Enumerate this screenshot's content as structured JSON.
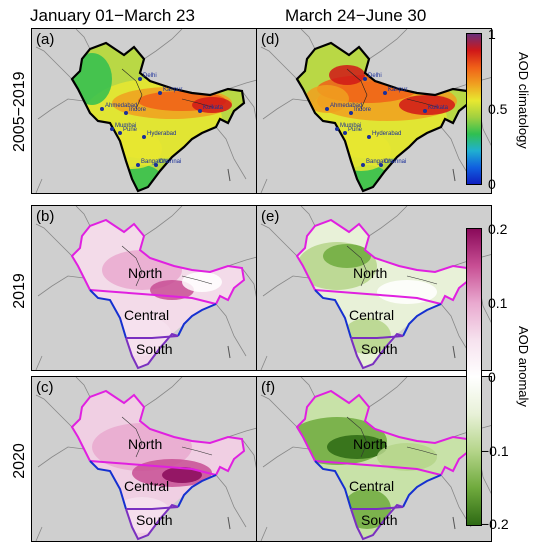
{
  "columns": [
    "January 01−March 23",
    "March 24−June 30"
  ],
  "rows": [
    "2005−2019",
    "2019",
    "2020"
  ],
  "panels": [
    {
      "label": "(a)",
      "row": 0,
      "col": 0,
      "kind": "climatology"
    },
    {
      "label": "(d)",
      "row": 0,
      "col": 1,
      "kind": "climatology"
    },
    {
      "label": "(b)",
      "row": 1,
      "col": 0,
      "kind": "anomaly"
    },
    {
      "label": "(e)",
      "row": 1,
      "col": 1,
      "kind": "anomaly"
    },
    {
      "label": "(c)",
      "row": 2,
      "col": 0,
      "kind": "anomaly"
    },
    {
      "label": "(f)",
      "row": 2,
      "col": 1,
      "kind": "anomaly"
    }
  ],
  "cities": [
    "Delhi",
    "Kanpur",
    "Ahmedabad",
    "Indore",
    "Kolkata",
    "Mumbai",
    "Pune",
    "Hyderabad",
    "Bangalore",
    "Chennai"
  ],
  "regions": {
    "north": "North",
    "central": "Central",
    "south": "South"
  },
  "colorbar_top": {
    "title": "AOD climatology",
    "ticks": [
      "1",
      "0.5",
      "0"
    ],
    "colors": [
      "#6a2f7a",
      "#d01818",
      "#f06018",
      "#f0a020",
      "#e8e830",
      "#a0d040",
      "#30c050",
      "#20b0d0",
      "#1060e0",
      "#1020c0"
    ]
  },
  "colorbar_bottom": {
    "title": "AOD anomaly",
    "ticks": [
      "0.2",
      "0.1",
      "0",
      "−0.1",
      "−0.2"
    ],
    "colors": [
      "#8a0a5a",
      "#c84f94",
      "#e9a9cf",
      "#f6e2ee",
      "#ffffff",
      "#e8f1d8",
      "#b5d58a",
      "#6faa3d",
      "#2e6a14"
    ]
  },
  "boundary_colors": {
    "north": "#e020e0",
    "central": "#1530d0",
    "south": "#7a30c0"
  }
}
